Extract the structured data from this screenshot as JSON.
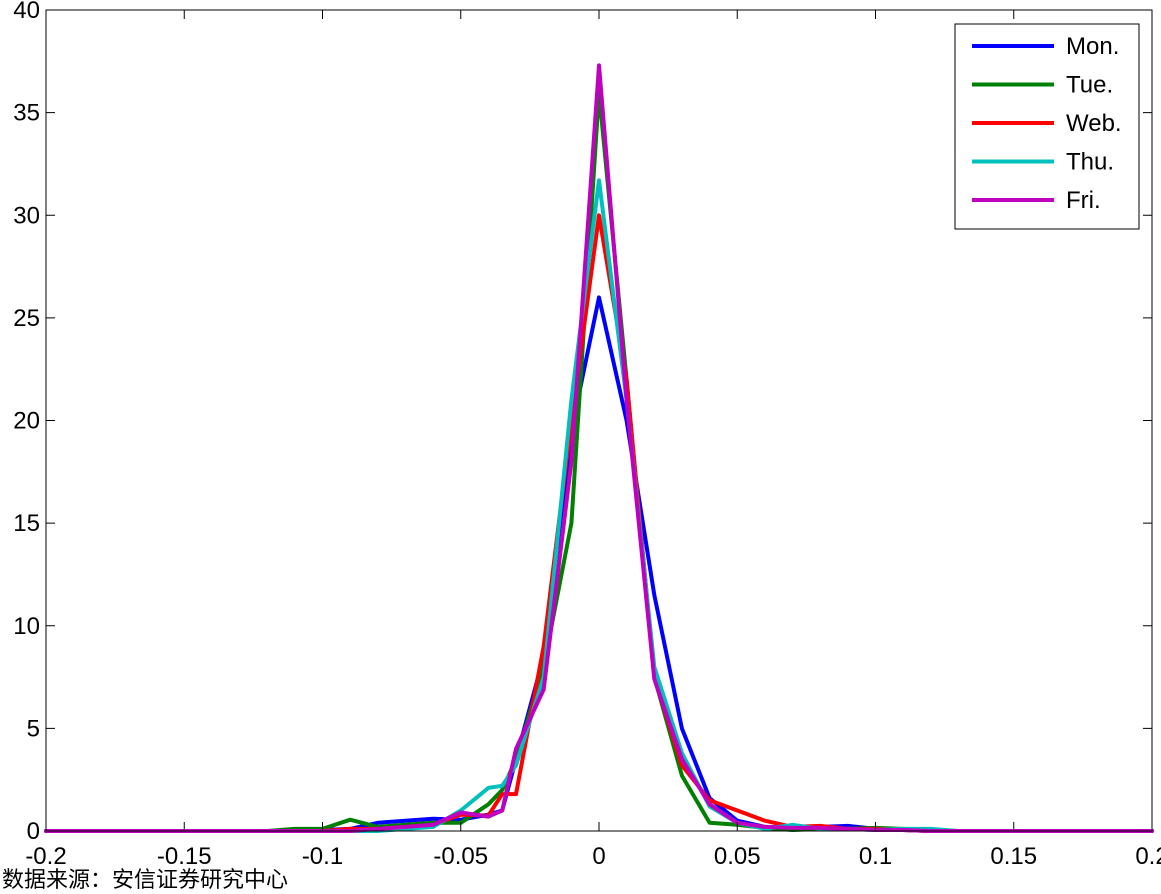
{
  "chart_data": {
    "type": "line",
    "title": "",
    "xlabel": "",
    "ylabel": "",
    "xlim": [
      -0.2,
      0.2
    ],
    "ylim": [
      0,
      40
    ],
    "x_ticks": [
      -0.2,
      -0.15,
      -0.1,
      -0.05,
      0,
      0.05,
      0.1,
      0.15,
      0.2
    ],
    "x_tick_labels": [
      "-0.2",
      "-0.15",
      "-0.1",
      "-0.05",
      "0",
      "0.05",
      "0.1",
      "0.15",
      "0.2"
    ],
    "y_ticks": [
      0,
      5,
      10,
      15,
      20,
      25,
      30,
      35,
      40
    ],
    "y_tick_labels": [
      "0",
      "5",
      "10",
      "15",
      "20",
      "25",
      "30",
      "35",
      "40"
    ],
    "grid": false,
    "legend_position": "top-right",
    "x": [
      -0.2,
      -0.12,
      -0.11,
      -0.1,
      -0.09,
      -0.08,
      -0.07,
      -0.06,
      -0.05,
      -0.04,
      -0.035,
      -0.03,
      -0.02,
      -0.01,
      0,
      0.01,
      0.02,
      0.03,
      0.04,
      0.05,
      0.06,
      0.07,
      0.08,
      0.09,
      0.1,
      0.11,
      0.12,
      0.13,
      0.2
    ],
    "series": [
      {
        "name": "Mon.",
        "color": "#0000ff",
        "values": [
          0,
          0,
          0,
          0.05,
          0.1,
          0.4,
          0.5,
          0.6,
          0.55,
          0.8,
          1.0,
          3.5,
          8.5,
          19.5,
          26.0,
          20.0,
          11.5,
          5.0,
          1.6,
          0.5,
          0.2,
          0.15,
          0.2,
          0.25,
          0.1,
          0.05,
          0,
          0,
          0
        ]
      },
      {
        "name": "Tue.",
        "color": "#008000",
        "values": [
          0,
          0,
          0.1,
          0.1,
          0.55,
          0.2,
          0.3,
          0.4,
          0.4,
          1.3,
          2.0,
          3.5,
          8.0,
          15.0,
          36.0,
          22.0,
          7.5,
          2.7,
          0.4,
          0.3,
          0.15,
          0.05,
          0.1,
          0.1,
          0.15,
          0.1,
          0.05,
          0,
          0
        ]
      },
      {
        "name": "Web.",
        "color": "#ff0000",
        "values": [
          0,
          0,
          0,
          0,
          0.1,
          0.1,
          0.2,
          0.3,
          0.8,
          0.75,
          1.8,
          1.8,
          9.0,
          20.0,
          30.0,
          22.0,
          7.5,
          3.2,
          1.5,
          1.0,
          0.5,
          0.2,
          0.25,
          0.1,
          0.1,
          0.05,
          0,
          0,
          0
        ]
      },
      {
        "name": "Thu.",
        "color": "#00bfbf",
        "values": [
          0,
          0,
          0,
          0,
          0,
          0,
          0.1,
          0.2,
          1.0,
          2.1,
          2.2,
          3.2,
          7.5,
          21.0,
          31.7,
          21.0,
          8.0,
          3.8,
          1.2,
          0.4,
          0.1,
          0.3,
          0.1,
          0.1,
          0.05,
          0.1,
          0.1,
          0,
          0
        ]
      },
      {
        "name": "Fri.",
        "color": "#bf00bf",
        "values": [
          0,
          0,
          0,
          0,
          0,
          0.1,
          0.2,
          0.3,
          0.9,
          0.7,
          1.0,
          4.0,
          6.9,
          18.0,
          37.3,
          21.0,
          7.4,
          3.5,
          1.3,
          0.4,
          0.2,
          0.15,
          0.15,
          0.1,
          0.05,
          0.05,
          0,
          0,
          0
        ]
      }
    ]
  },
  "source_note": "数据来源：安信证券研究中心"
}
